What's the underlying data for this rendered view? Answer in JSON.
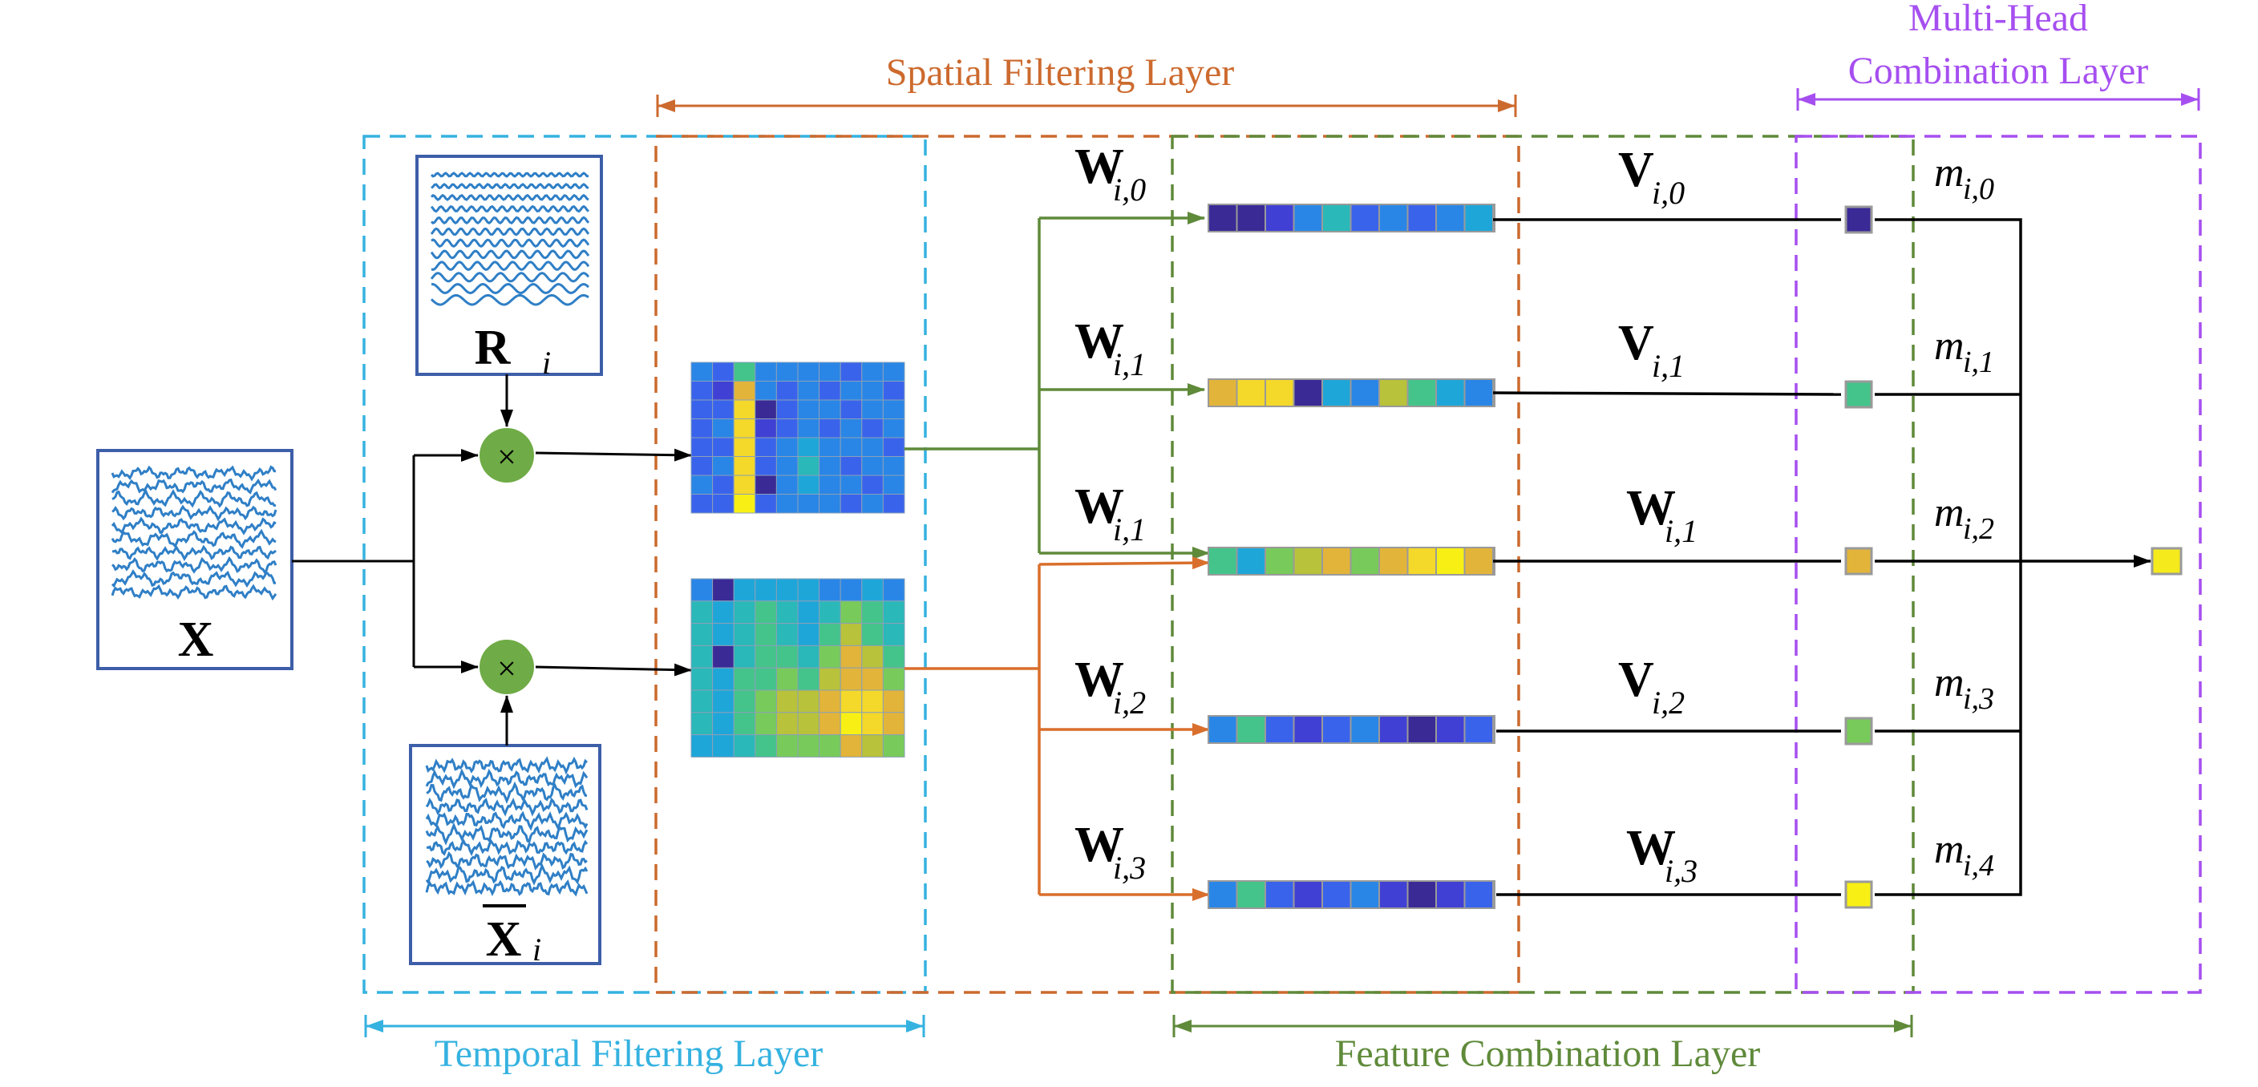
{
  "layers": {
    "spatial": {
      "label": "Spatial Filtering Layer",
      "color": "#cc6a2e"
    },
    "temporal": {
      "label": "Temporal Filtering Layer",
      "color": "#35b2e0"
    },
    "feature": {
      "label": "Feature Combination Layer",
      "color": "#5f8a3a"
    },
    "multihead": {
      "label_line1": "Multi-Head",
      "label_line2": "Combination Layer",
      "color": "#a64ff0"
    }
  },
  "inputs": {
    "x_label": "X",
    "r_label": "R",
    "r_sub": "i",
    "xbar_label": "X",
    "xbar_sub": "i",
    "multiply_symbol": "×"
  },
  "branches": [
    {
      "w_name": "W",
      "w_sub": "i,0",
      "v_name": "V",
      "v_sub": "i,0",
      "m_name": "m",
      "m_sub": "i,0"
    },
    {
      "w_name": "W",
      "w_sub": "i,1",
      "v_name": "V",
      "v_sub": "i,1",
      "m_name": "m",
      "m_sub": "i,1"
    },
    {
      "w_name": "W",
      "w_sub": "i,1",
      "v_name": "W",
      "v_sub": "i,1",
      "m_name": "m",
      "m_sub": "i,2"
    },
    {
      "w_name": "W",
      "w_sub": "i,2",
      "v_name": "V",
      "v_sub": "i,2",
      "m_name": "m",
      "m_sub": "i,3"
    },
    {
      "w_name": "W",
      "w_sub": "i,3",
      "v_name": "W",
      "v_sub": "i,3",
      "m_name": "m",
      "m_sub": "i,4"
    }
  ],
  "colors": {
    "signal": "#2f7fc6",
    "frame": "#3d5ea8",
    "multiply_fill": "#6fab46",
    "green_line": "#5f8a3a",
    "orange_line": "#d96f2c",
    "black_line": "#000000"
  }
}
